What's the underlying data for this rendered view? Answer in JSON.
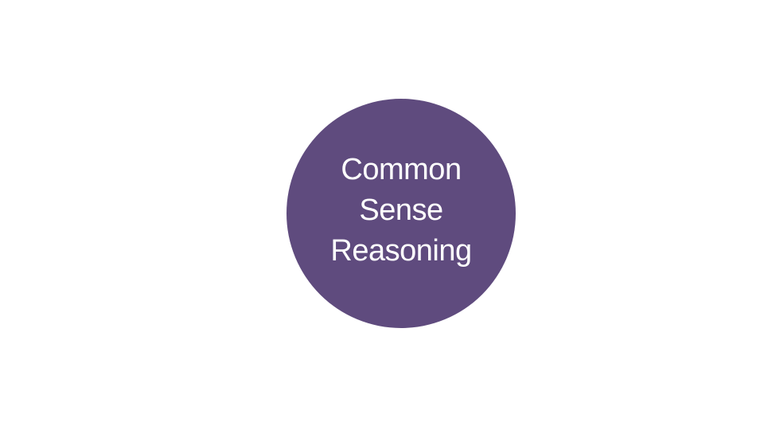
{
  "colors": {
    "circle_fill": "#5f4b7e",
    "text": "#ffffff",
    "background": "#ffffff"
  },
  "concept": {
    "lines": [
      "Common",
      "Sense",
      "Reasoning"
    ]
  }
}
